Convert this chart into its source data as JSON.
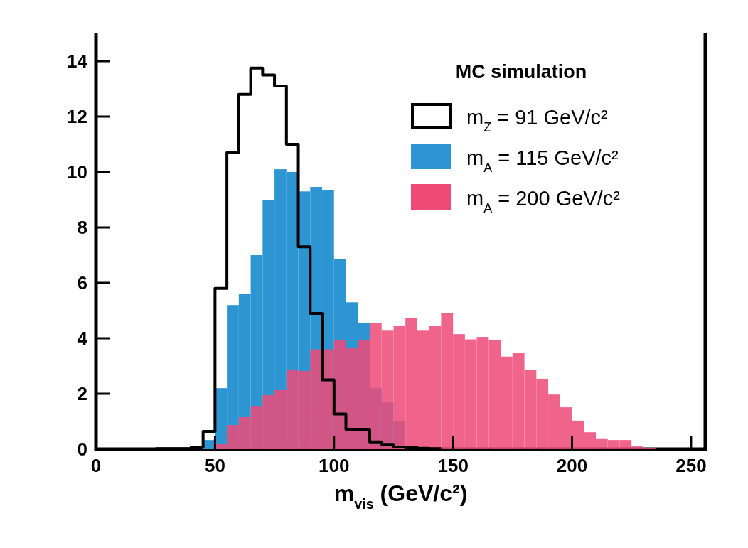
{
  "chart_data": {
    "type": "histogram",
    "xlabel": "m$_{vis}$ (GeV/c²)",
    "legend_title": "MC simulation",
    "legend": "top right",
    "bins": [
      45,
      50,
      55,
      60,
      65,
      70,
      75,
      80,
      85,
      90,
      95,
      100,
      105,
      110,
      115,
      120,
      125,
      130,
      135,
      140,
      145,
      150,
      155,
      160,
      165,
      170,
      175,
      180,
      185,
      190,
      195,
      200,
      205,
      210,
      215,
      220,
      225,
      230,
      235
    ],
    "xlim": [
      0,
      256
    ],
    "xticks": [
      0,
      50,
      100,
      150,
      200,
      250
    ],
    "ylim": [
      0,
      15
    ],
    "yticks": [
      0,
      2,
      4,
      6,
      8,
      10,
      12,
      14
    ],
    "series": [
      {
        "name": "m$_{Z}$ = 91 GeV/c²",
        "type": "step",
        "color": "#000000",
        "x": [
          25,
          30,
          35,
          40,
          45,
          50,
          55,
          60,
          65,
          70,
          75,
          80,
          85,
          90,
          95,
          100,
          105,
          110,
          115,
          120,
          125,
          130,
          135,
          140,
          145
        ],
        "values": [
          0.02,
          0.02,
          0.02,
          0.08,
          0.64,
          5.8,
          10.7,
          12.8,
          13.75,
          13.5,
          13.1,
          11.0,
          7.3,
          4.9,
          2.5,
          1.27,
          0.72,
          0.72,
          0.26,
          0.17,
          0.08,
          0.05,
          0.03,
          0.02,
          0.02
        ]
      },
      {
        "name": "m$_{A}$ = 115 GeV/c²",
        "type": "histogram",
        "color": "#2e95d3",
        "values": [
          0.33,
          2.2,
          5.2,
          5.6,
          7.0,
          9.0,
          10.1,
          10.0,
          9.3,
          9.46,
          9.36,
          6.85,
          5.3,
          4.54,
          2.2,
          1.7,
          1.0,
          null,
          null,
          null,
          null,
          null,
          null,
          null,
          null,
          null,
          null,
          null,
          null,
          null,
          null,
          null,
          null,
          null,
          null,
          null,
          null,
          null
        ]
      },
      {
        "name": "m$_{A}$ = 200 GeV/c²",
        "type": "histogram",
        "color": "#ee4a78",
        "values": [
          null,
          0.2,
          0.87,
          1.17,
          1.56,
          1.95,
          2.13,
          2.86,
          2.82,
          3.6,
          3.6,
          3.95,
          3.65,
          3.95,
          4.55,
          4.3,
          4.45,
          4.74,
          4.3,
          4.45,
          4.92,
          4.15,
          3.96,
          4.05,
          3.95,
          3.34,
          3.47,
          2.87,
          2.54,
          1.97,
          1.51,
          1.03,
          0.61,
          0.39,
          0.33,
          0.33,
          0.1,
          0.05
        ]
      }
    ]
  }
}
